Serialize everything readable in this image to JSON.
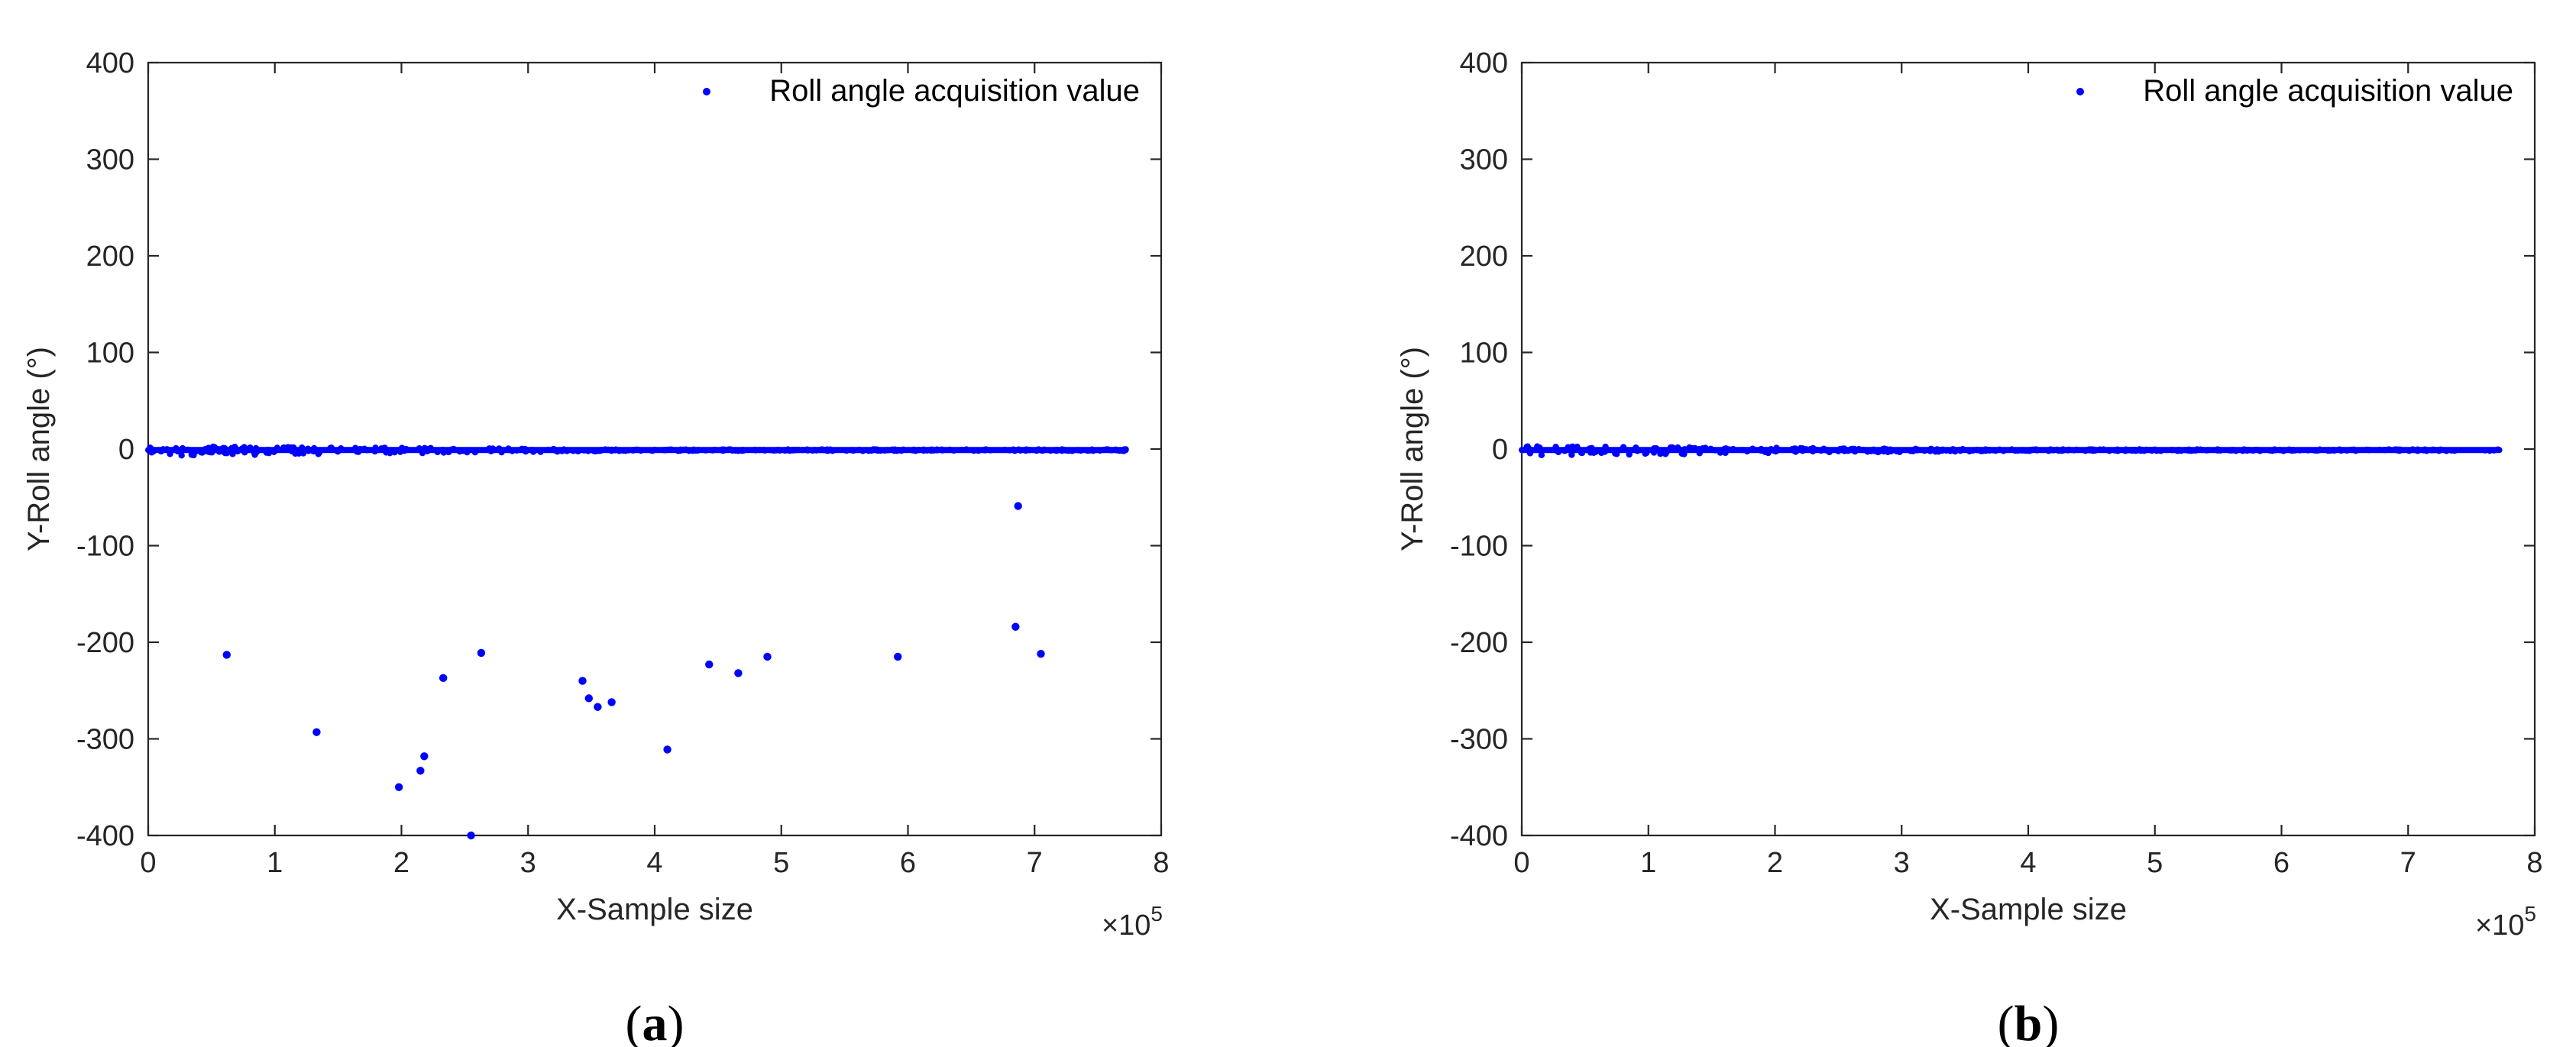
{
  "chart_data": [
    {
      "panel_label": "(a)",
      "panel_letter": "a",
      "type": "scatter",
      "xlabel": "X-Sample size",
      "ylabel": "Y-Roll angle (°)",
      "x_exponent_label": "×10",
      "x_exponent_power": "5",
      "xlim": [
        0,
        8
      ],
      "ylim": [
        -400,
        400
      ],
      "xticks": [
        0,
        1,
        2,
        3,
        4,
        5,
        6,
        7,
        8
      ],
      "yticks": [
        -400,
        -300,
        -200,
        -100,
        0,
        100,
        200,
        300,
        400
      ],
      "x_tick_labels": [
        "0",
        "1",
        "2",
        "3",
        "4",
        "5",
        "6",
        "7",
        "8"
      ],
      "y_tick_labels": [
        "-400",
        "-300",
        "-200",
        "-100",
        "0",
        "100",
        "200",
        "300",
        "400"
      ],
      "legend": {
        "entries": [
          "Roll angle acquisition value"
        ],
        "position": "top-right"
      },
      "grid": false,
      "marker_color": "#0000ff",
      "series": [
        {
          "name": "Roll angle acquisition value",
          "baseline_band": {
            "x_range": [
              0,
              7.72
            ],
            "y_value": -1,
            "y_noise_range": [
              -6,
              4
            ]
          },
          "outliers": [
            {
              "x": 0.62,
              "y": -213
            },
            {
              "x": 1.33,
              "y": -293
            },
            {
              "x": 1.98,
              "y": -350
            },
            {
              "x": 2.15,
              "y": -333
            },
            {
              "x": 2.18,
              "y": -318
            },
            {
              "x": 2.33,
              "y": -237
            },
            {
              "x": 2.55,
              "y": -400
            },
            {
              "x": 2.63,
              "y": -211
            },
            {
              "x": 3.43,
              "y": -240
            },
            {
              "x": 3.48,
              "y": -258
            },
            {
              "x": 3.55,
              "y": -267
            },
            {
              "x": 3.66,
              "y": -262
            },
            {
              "x": 4.1,
              "y": -311
            },
            {
              "x": 4.43,
              "y": -223
            },
            {
              "x": 4.66,
              "y": -232
            },
            {
              "x": 4.89,
              "y": -215
            },
            {
              "x": 5.92,
              "y": -215
            },
            {
              "x": 6.85,
              "y": -184
            },
            {
              "x": 6.87,
              "y": -59
            },
            {
              "x": 7.05,
              "y": -212
            }
          ]
        }
      ]
    },
    {
      "panel_label": "(b)",
      "panel_letter": "b",
      "type": "scatter",
      "xlabel": "X-Sample size",
      "ylabel": "Y-Roll angle (°)",
      "x_exponent_label": "×10",
      "x_exponent_power": "5",
      "xlim": [
        0,
        8
      ],
      "ylim": [
        -400,
        400
      ],
      "xticks": [
        0,
        1,
        2,
        3,
        4,
        5,
        6,
        7,
        8
      ],
      "yticks": [
        -400,
        -300,
        -200,
        -100,
        0,
        100,
        200,
        300,
        400
      ],
      "x_tick_labels": [
        "0",
        "1",
        "2",
        "3",
        "4",
        "5",
        "6",
        "7",
        "8"
      ],
      "y_tick_labels": [
        "-400",
        "-300",
        "-200",
        "-100",
        "0",
        "100",
        "200",
        "300",
        "400"
      ],
      "legend": {
        "entries": [
          "Roll angle acquisition value"
        ],
        "position": "top-right"
      },
      "grid": false,
      "marker_color": "#0000ff",
      "series": [
        {
          "name": "Roll angle acquisition value",
          "baseline_band": {
            "x_range": [
              0,
              7.72
            ],
            "y_value": -1,
            "y_noise_range": [
              -6,
              4
            ]
          },
          "outliers": []
        }
      ]
    }
  ]
}
